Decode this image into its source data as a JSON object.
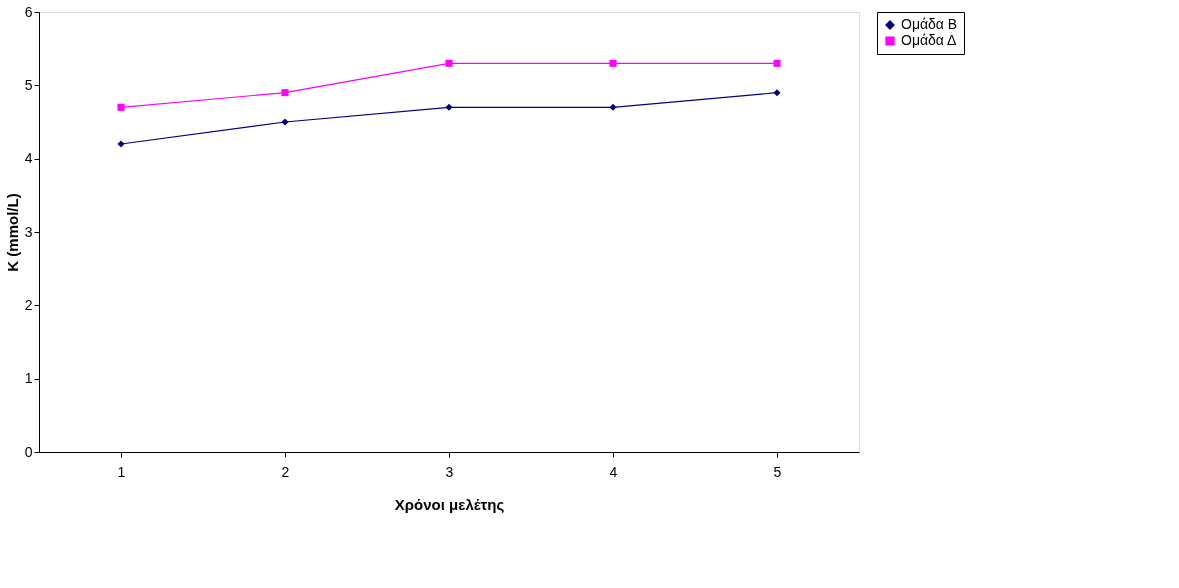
{
  "chart_data": {
    "type": "line",
    "xlabel": "Χρόνοι μελέτης",
    "ylabel": "K (mmol/L)",
    "categories": [
      "1",
      "2",
      "3",
      "4",
      "5"
    ],
    "series": [
      {
        "name": "Ομάδα Β",
        "color": "#000080",
        "marker": "diamond",
        "values": [
          4.2,
          4.5,
          4.7,
          4.7,
          4.9
        ]
      },
      {
        "name": "Ομάδα Δ",
        "color": "#ff00ff",
        "marker": "square",
        "values": [
          4.7,
          4.9,
          5.3,
          5.3,
          5.3
        ]
      }
    ],
    "ylim": [
      0,
      6
    ],
    "yticks": [
      0,
      1,
      2,
      3,
      4,
      5,
      6
    ],
    "grid": false,
    "legend": "right"
  }
}
